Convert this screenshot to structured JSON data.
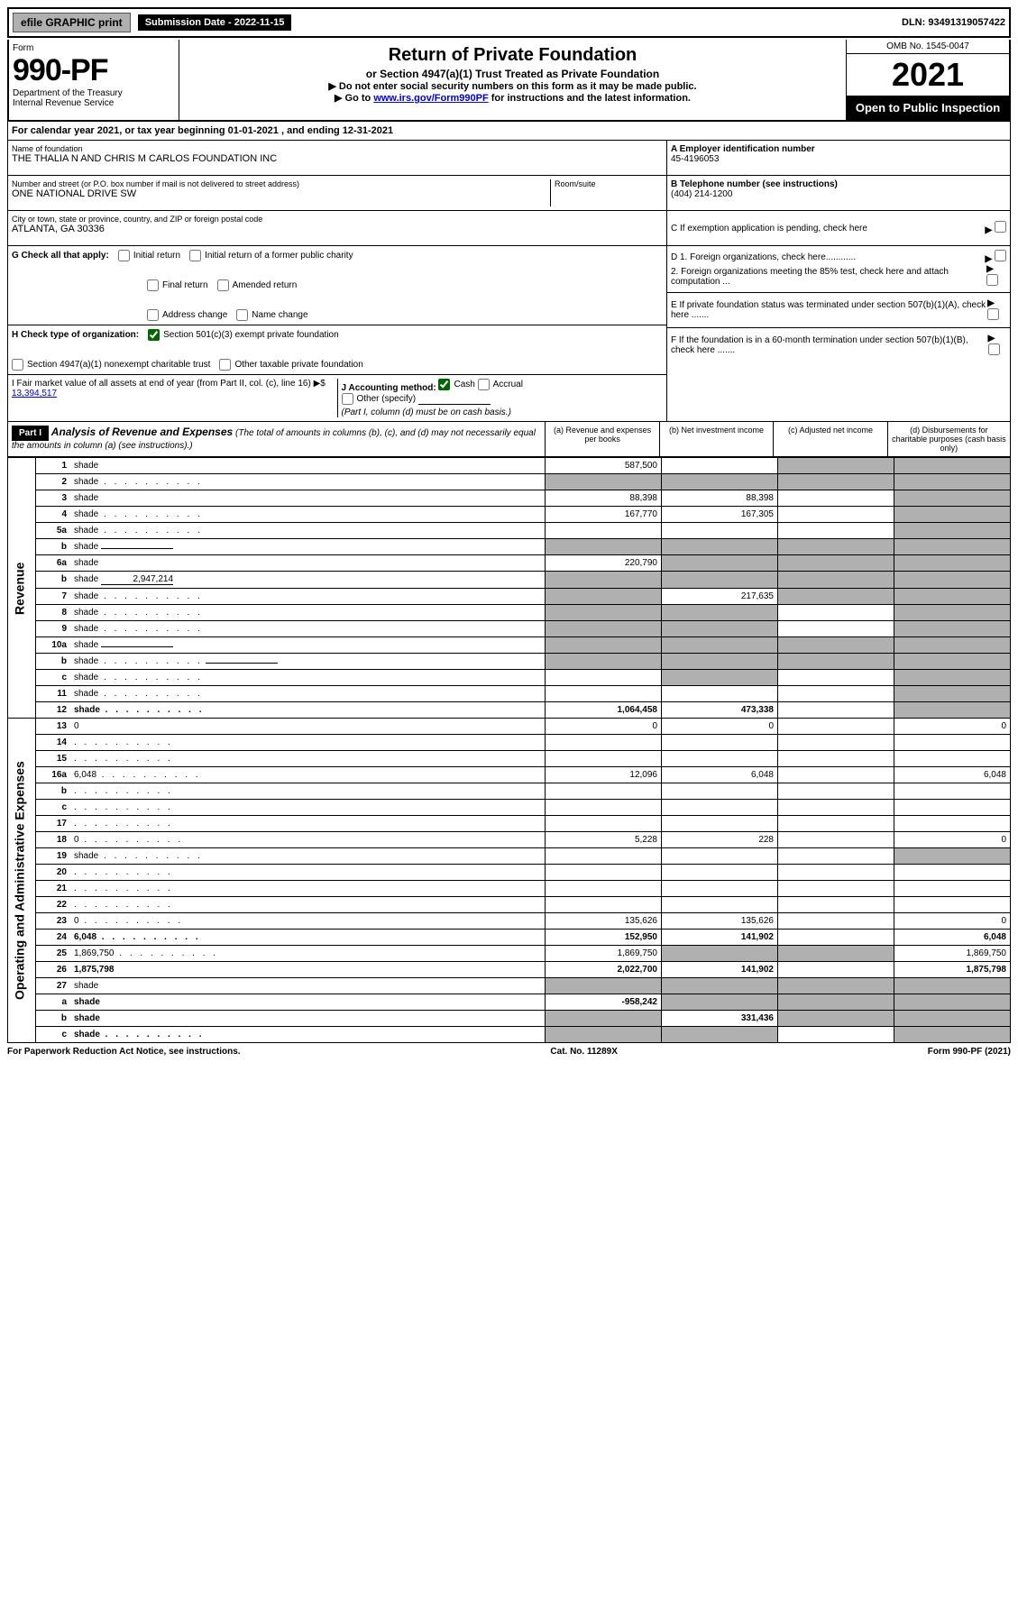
{
  "top_bar": {
    "efile": "efile GRAPHIC print",
    "submission_label": "Submission Date - 2022-11-15",
    "dln": "DLN: 93491319057422"
  },
  "header": {
    "form_label": "Form",
    "form_number": "990-PF",
    "dept1": "Department of the Treasury",
    "dept2": "Internal Revenue Service",
    "title": "Return of Private Foundation",
    "subtitle": "or Section 4947(a)(1) Trust Treated as Private Foundation",
    "line1": "▶ Do not enter social security numbers on this form as it may be made public.",
    "line2_pre": "▶ Go to ",
    "line2_link": "www.irs.gov/Form990PF",
    "line2_post": " for instructions and the latest information.",
    "omb": "OMB No. 1545-0047",
    "tax_year": "2021",
    "open_pub": "Open to Public Inspection"
  },
  "cal_year": "For calendar year 2021, or tax year beginning 01-01-2021             , and ending 12-31-2021",
  "foundation": {
    "name_label": "Name of foundation",
    "name": "THE THALIA N AND CHRIS M CARLOS FOUNDATION INC",
    "addr_label": "Number and street (or P.O. box number if mail is not delivered to street address)",
    "addr": "ONE NATIONAL DRIVE SW",
    "room_label": "Room/suite",
    "room": "",
    "city_label": "City or town, state or province, country, and ZIP or foreign postal code",
    "city": "ATLANTA, GA  30336",
    "ein_label": "A Employer identification number",
    "ein": "45-4196053",
    "phone_label": "B Telephone number (see instructions)",
    "phone": "(404) 214-1200",
    "c_label": "C If exemption application is pending, check here"
  },
  "checks": {
    "g_label": "G Check all that apply:",
    "g1": "Initial return",
    "g2": "Initial return of a former public charity",
    "g3": "Final return",
    "g4": "Amended return",
    "g5": "Address change",
    "g6": "Name change",
    "h_label": "H Check type of organization:",
    "h1": "Section 501(c)(3) exempt private foundation",
    "h2": "Section 4947(a)(1) nonexempt charitable trust",
    "h3": "Other taxable private foundation",
    "i_label": "I Fair market value of all assets at end of year (from Part II, col. (c), line 16)",
    "i_value": "13,394,517",
    "j_label": "J Accounting method:",
    "j1": "Cash",
    "j2": "Accrual",
    "j3": "Other (specify)",
    "j_note": "(Part I, column (d) must be on cash basis.)",
    "d1": "D 1. Foreign organizations, check here............",
    "d2": "2. Foreign organizations meeting the 85% test, check here and attach computation ...",
    "e": "E If private foundation status was terminated under section 507(b)(1)(A), check here .......",
    "f": "F If the foundation is in a 60-month termination under section 507(b)(1)(B), check here .......",
    "h1_checked": true,
    "j1_checked": true
  },
  "part1": {
    "label": "Part I",
    "title": "Analysis of Revenue and Expenses",
    "note": "(The total of amounts in columns (b), (c), and (d) may not necessarily equal the amounts in column (a) (see instructions).)",
    "col_a": "(a) Revenue and expenses per books",
    "col_b": "(b) Net investment income",
    "col_c": "(c) Adjusted net income",
    "col_d": "(d) Disbursements for charitable purposes (cash basis only)"
  },
  "sections": {
    "revenue": "Revenue",
    "expenses": "Operating and Administrative Expenses"
  },
  "lines": [
    {
      "n": "1",
      "d": "shade",
      "a": "587,500",
      "b": "",
      "c": "shade"
    },
    {
      "n": "2",
      "d": "shade",
      "a": "shade",
      "b": "shade",
      "c": "shade",
      "dots": true
    },
    {
      "n": "3",
      "d": "shade",
      "a": "88,398",
      "b": "88,398",
      "c": ""
    },
    {
      "n": "4",
      "d": "shade",
      "a": "167,770",
      "b": "167,305",
      "c": "",
      "dots": true
    },
    {
      "n": "5a",
      "d": "shade",
      "a": "",
      "b": "",
      "c": "",
      "dots": true
    },
    {
      "n": "b",
      "d": "shade",
      "a": "shade",
      "b": "shade",
      "c": "shade",
      "inline": ""
    },
    {
      "n": "6a",
      "d": "shade",
      "a": "220,790",
      "b": "shade",
      "c": "shade"
    },
    {
      "n": "b",
      "d": "shade",
      "a": "shade",
      "b": "shade",
      "c": "shade",
      "inline": "2,947,214"
    },
    {
      "n": "7",
      "d": "shade",
      "a": "shade",
      "b": "217,635",
      "c": "shade",
      "dots": true
    },
    {
      "n": "8",
      "d": "shade",
      "a": "shade",
      "b": "shade",
      "c": "",
      "dots": true
    },
    {
      "n": "9",
      "d": "shade",
      "a": "shade",
      "b": "shade",
      "c": "",
      "dots": true
    },
    {
      "n": "10a",
      "d": "shade",
      "a": "shade",
      "b": "shade",
      "c": "shade",
      "inline": ""
    },
    {
      "n": "b",
      "d": "shade",
      "a": "shade",
      "b": "shade",
      "c": "shade",
      "inline": "",
      "dots": true
    },
    {
      "n": "c",
      "d": "shade",
      "a": "",
      "b": "shade",
      "c": "",
      "dots": true
    },
    {
      "n": "11",
      "d": "shade",
      "a": "",
      "b": "",
      "c": "",
      "dots": true
    },
    {
      "n": "12",
      "d": "shade",
      "a": "1,064,458",
      "b": "473,338",
      "c": "",
      "bold": true,
      "dots": true
    },
    {
      "n": "13",
      "d": "0",
      "a": "0",
      "b": "0",
      "c": ""
    },
    {
      "n": "14",
      "d": "",
      "a": "",
      "b": "",
      "c": "",
      "dots": true
    },
    {
      "n": "15",
      "d": "",
      "a": "",
      "b": "",
      "c": "",
      "dots": true
    },
    {
      "n": "16a",
      "d": "6,048",
      "a": "12,096",
      "b": "6,048",
      "c": "",
      "dots": true
    },
    {
      "n": "b",
      "d": "",
      "a": "",
      "b": "",
      "c": "",
      "dots": true
    },
    {
      "n": "c",
      "d": "",
      "a": "",
      "b": "",
      "c": "",
      "dots": true
    },
    {
      "n": "17",
      "d": "",
      "a": "",
      "b": "",
      "c": "",
      "dots": true
    },
    {
      "n": "18",
      "d": "0",
      "a": "5,228",
      "b": "228",
      "c": "",
      "dots": true
    },
    {
      "n": "19",
      "d": "shade",
      "a": "",
      "b": "",
      "c": "",
      "dots": true
    },
    {
      "n": "20",
      "d": "",
      "a": "",
      "b": "",
      "c": "",
      "dots": true
    },
    {
      "n": "21",
      "d": "",
      "a": "",
      "b": "",
      "c": "",
      "dots": true
    },
    {
      "n": "22",
      "d": "",
      "a": "",
      "b": "",
      "c": "",
      "dots": true
    },
    {
      "n": "23",
      "d": "0",
      "a": "135,626",
      "b": "135,626",
      "c": "",
      "dots": true
    },
    {
      "n": "24",
      "d": "6,048",
      "a": "152,950",
      "b": "141,902",
      "c": "",
      "bold": true,
      "dots": true
    },
    {
      "n": "25",
      "d": "1,869,750",
      "a": "1,869,750",
      "b": "shade",
      "c": "shade",
      "dots": true
    },
    {
      "n": "26",
      "d": "1,875,798",
      "a": "2,022,700",
      "b": "141,902",
      "c": "",
      "bold": true
    },
    {
      "n": "27",
      "d": "shade",
      "a": "shade",
      "b": "shade",
      "c": "shade"
    },
    {
      "n": "a",
      "d": "shade",
      "a": "-958,242",
      "b": "shade",
      "c": "shade",
      "bold": true
    },
    {
      "n": "b",
      "d": "shade",
      "a": "shade",
      "b": "331,436",
      "c": "shade",
      "bold": true
    },
    {
      "n": "c",
      "d": "shade",
      "a": "shade",
      "b": "shade",
      "c": "",
      "bold": true,
      "dots": true
    }
  ],
  "footer": {
    "left": "For Paperwork Reduction Act Notice, see instructions.",
    "mid": "Cat. No. 11289X",
    "right": "Form 990-PF (2021)"
  },
  "colors": {
    "shade": "#b0b0b0",
    "link": "#0000cc",
    "black": "#000000",
    "white": "#ffffff",
    "check_green": "#006400"
  }
}
